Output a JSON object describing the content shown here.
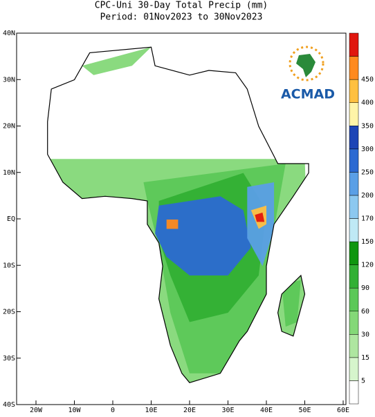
{
  "header": {
    "title": "CPC-Uni 30-Day Total Precip (mm)",
    "subtitle": "Period: 01Nov2023 to 30Nov2023"
  },
  "map": {
    "lat_labels": [
      "40N",
      "30N",
      "20N",
      "10N",
      "EQ",
      "10S",
      "20S",
      "30S",
      "40S"
    ],
    "lon_labels": [
      "20W",
      "10W",
      "0",
      "10E",
      "20E",
      "30E",
      "40E",
      "50E",
      "60E"
    ],
    "logo": "ACMAD"
  },
  "colorbar": {
    "levels": [
      5,
      15,
      30,
      60,
      90,
      120,
      150,
      170,
      200,
      250,
      300,
      350,
      400,
      450
    ],
    "colors": [
      "#ffffff",
      "#d6f5cc",
      "#aee6a0",
      "#84d878",
      "#5cc858",
      "#32b034",
      "#0f960f",
      "#bfe9f5",
      "#8cc8f0",
      "#5a9fe6",
      "#2c6ad2",
      "#1d45b6",
      "#fff4a8",
      "#ffc040",
      "#ff8a1e",
      "#e0160e"
    ]
  }
}
